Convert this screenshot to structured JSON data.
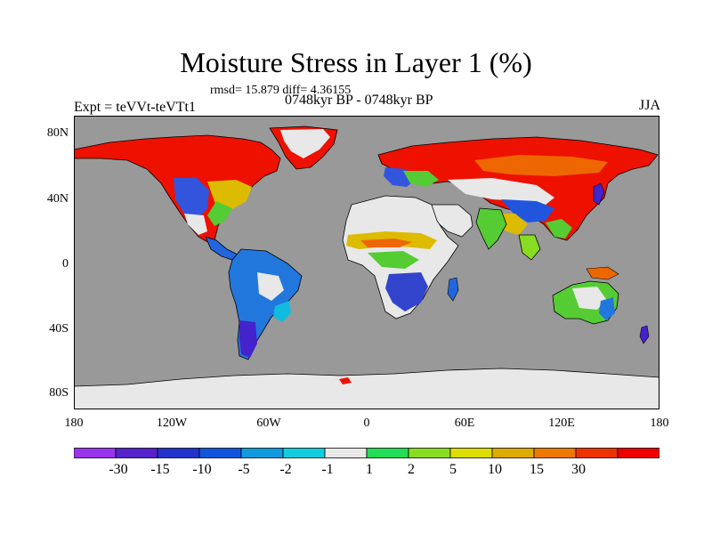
{
  "title": "Moisture Stress in Layer 1 (%)",
  "stats": "rmsd= 15.879 diff= 4.36155",
  "experiment": "Expt = teVVt-teVTt1",
  "period": "0748kyr BP - 0748kyr BP",
  "season": "JJA",
  "colors": {
    "ocean": "#999999",
    "ice": "#e8e8e8"
  },
  "axes": {
    "y_ticks": [
      "80N",
      "40N",
      "0",
      "40S",
      "80S"
    ],
    "x_ticks": [
      "180",
      "120W",
      "60W",
      "0",
      "60E",
      "120E",
      "180"
    ]
  },
  "colorbar": {
    "colors": [
      "#9933ee",
      "#5522cc",
      "#2233cc",
      "#1155dd",
      "#1199dd",
      "#11ccdd",
      "#e8e8e8",
      "#22dd55",
      "#88dd22",
      "#dddd00",
      "#ddaa00",
      "#ee7700",
      "#ee3300",
      "#ee0000"
    ],
    "labels": [
      "-30",
      "-15",
      "-10",
      "-5",
      "-2",
      "-1",
      "1",
      "2",
      "5",
      "10",
      "15",
      "30"
    ]
  }
}
